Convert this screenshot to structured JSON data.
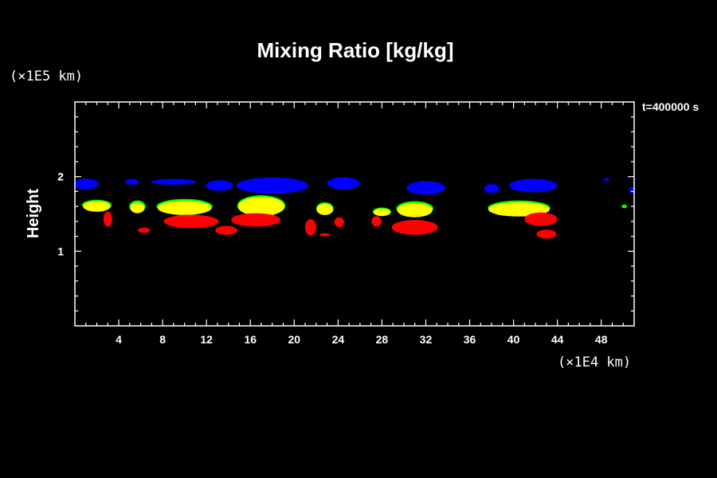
{
  "chart_data": {
    "type": "heatmap",
    "title": "Mixing Ratio [kg/kg]",
    "ylabel": "Height",
    "x_unit": "(×1E4 km)",
    "y_unit": "(×1E5 km)",
    "time_label": "t=400000 s",
    "xlim": [
      0,
      51
    ],
    "ylim": [
      0,
      3
    ],
    "x_major_ticks": [
      4,
      8,
      12,
      16,
      20,
      24,
      28,
      32,
      36,
      40,
      44,
      48
    ],
    "y_major_ticks": [
      1,
      2
    ],
    "grid": false,
    "legend": "none",
    "layers": [
      {
        "color": "#0000ff",
        "blobs": [
          {
            "x": 1.0,
            "y": 1.9,
            "w": 2.3,
            "h": 0.14
          },
          {
            "x": 5.2,
            "y": 1.93,
            "w": 1.2,
            "h": 0.08
          },
          {
            "x": 9.0,
            "y": 1.93,
            "w": 4.0,
            "h": 0.08
          },
          {
            "x": 13.2,
            "y": 1.88,
            "w": 2.5,
            "h": 0.14
          },
          {
            "x": 18.0,
            "y": 1.88,
            "w": 6.5,
            "h": 0.22
          },
          {
            "x": 24.5,
            "y": 1.91,
            "w": 3.0,
            "h": 0.16
          },
          {
            "x": 32.0,
            "y": 1.85,
            "w": 3.5,
            "h": 0.18
          },
          {
            "x": 38.0,
            "y": 1.84,
            "w": 1.4,
            "h": 0.12
          },
          {
            "x": 41.8,
            "y": 1.88,
            "w": 4.4,
            "h": 0.18
          },
          {
            "x": 48.5,
            "y": 1.96,
            "w": 0.6,
            "h": 0.04
          },
          {
            "x": 50.8,
            "y": 1.82,
            "w": 0.6,
            "h": 0.08
          }
        ]
      },
      {
        "color": "#00ff00",
        "blobs": [
          {
            "x": 2.0,
            "y": 1.62,
            "w": 2.7,
            "h": 0.14
          },
          {
            "x": 5.7,
            "y": 1.6,
            "w": 1.5,
            "h": 0.16
          },
          {
            "x": 10.0,
            "y": 1.6,
            "w": 5.1,
            "h": 0.2
          },
          {
            "x": 17.0,
            "y": 1.61,
            "w": 4.4,
            "h": 0.28
          },
          {
            "x": 22.8,
            "y": 1.57,
            "w": 1.6,
            "h": 0.17
          },
          {
            "x": 28.0,
            "y": 1.53,
            "w": 1.7,
            "h": 0.11
          },
          {
            "x": 31.0,
            "y": 1.57,
            "w": 3.4,
            "h": 0.2
          },
          {
            "x": 40.5,
            "y": 1.58,
            "w": 5.7,
            "h": 0.2
          },
          {
            "x": 50.1,
            "y": 1.6,
            "w": 0.5,
            "h": 0.05
          }
        ]
      },
      {
        "color": "#ffff00",
        "blobs": [
          {
            "x": 2.0,
            "y": 1.6,
            "w": 2.5,
            "h": 0.14
          },
          {
            "x": 5.7,
            "y": 1.58,
            "w": 1.3,
            "h": 0.14
          },
          {
            "x": 10.0,
            "y": 1.58,
            "w": 4.9,
            "h": 0.19
          },
          {
            "x": 17.0,
            "y": 1.6,
            "w": 4.2,
            "h": 0.26
          },
          {
            "x": 22.8,
            "y": 1.56,
            "w": 1.5,
            "h": 0.15
          },
          {
            "x": 28.0,
            "y": 1.52,
            "w": 1.5,
            "h": 0.1
          },
          {
            "x": 31.0,
            "y": 1.55,
            "w": 3.2,
            "h": 0.19
          },
          {
            "x": 40.5,
            "y": 1.56,
            "w": 5.6,
            "h": 0.19
          }
        ]
      },
      {
        "color": "#ff0000",
        "blobs": [
          {
            "x": 3.0,
            "y": 1.43,
            "w": 0.8,
            "h": 0.2
          },
          {
            "x": 6.3,
            "y": 1.28,
            "w": 1.1,
            "h": 0.07
          },
          {
            "x": 10.6,
            "y": 1.4,
            "w": 5.0,
            "h": 0.18
          },
          {
            "x": 13.8,
            "y": 1.28,
            "w": 2.0,
            "h": 0.12
          },
          {
            "x": 16.5,
            "y": 1.42,
            "w": 4.5,
            "h": 0.18
          },
          {
            "x": 21.5,
            "y": 1.32,
            "w": 1.0,
            "h": 0.22
          },
          {
            "x": 22.8,
            "y": 1.22,
            "w": 1.0,
            "h": 0.04
          },
          {
            "x": 24.1,
            "y": 1.39,
            "w": 0.9,
            "h": 0.13
          },
          {
            "x": 27.5,
            "y": 1.4,
            "w": 0.9,
            "h": 0.14
          },
          {
            "x": 31.0,
            "y": 1.32,
            "w": 4.2,
            "h": 0.2
          },
          {
            "x": 42.5,
            "y": 1.43,
            "w": 3.0,
            "h": 0.18
          },
          {
            "x": 43.0,
            "y": 1.23,
            "w": 1.8,
            "h": 0.12
          }
        ]
      }
    ]
  }
}
